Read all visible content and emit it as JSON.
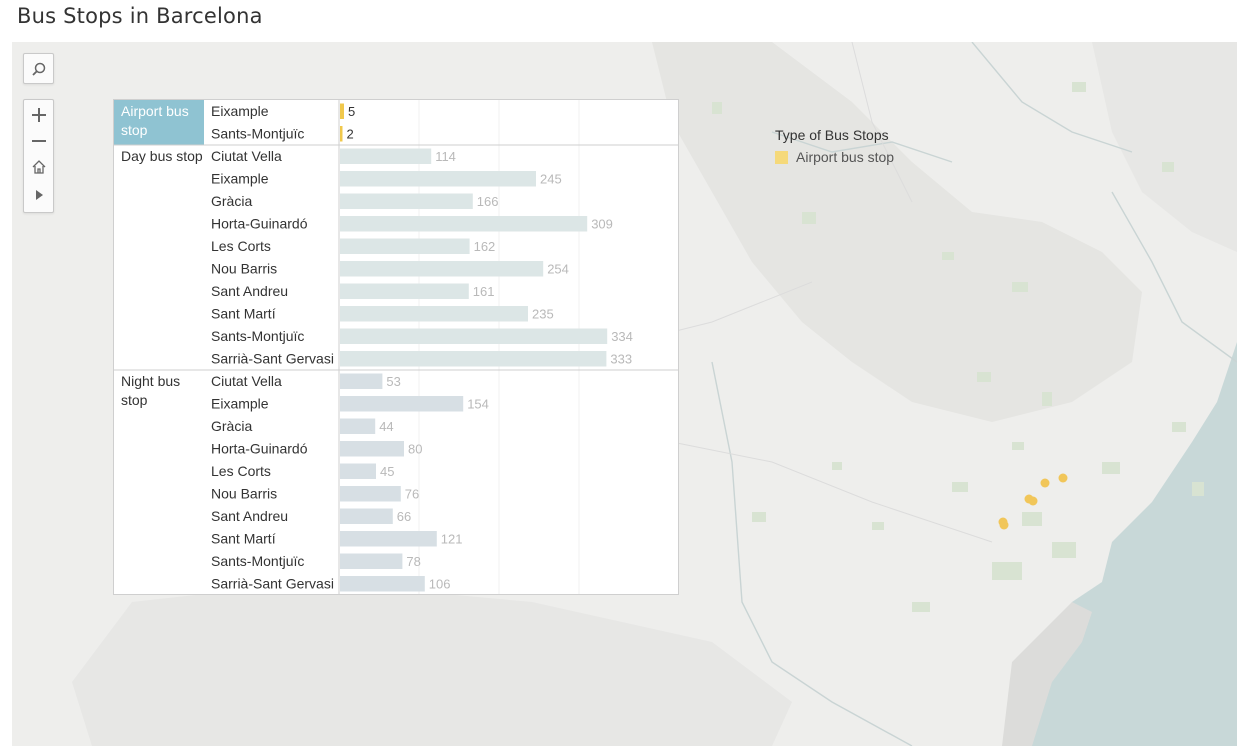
{
  "page_title": "Bus Stops in Barcelona",
  "map_controls": {
    "search": "search-icon",
    "zoom_in": "plus-icon",
    "zoom_out": "minus-icon",
    "home": "home-icon",
    "pan": "play-icon"
  },
  "legend": {
    "title": "Type of Bus Stops",
    "items": [
      {
        "label": "Airport bus stop",
        "color": "#f5d97a"
      }
    ]
  },
  "colors": {
    "map_bg": "#eeeeec",
    "airport_bar": "#f0c84c",
    "airport_header_bg": "#8fc3d2",
    "day_bar": "#dce6e6",
    "night_bar": "#d7dfe4",
    "value_label": "#b9b9b9",
    "map_point": "#f2c24a"
  },
  "chart_data": {
    "type": "bar",
    "orientation": "horizontal",
    "title": "",
    "xlabel": "",
    "ylabel": "",
    "xlim": [
      0,
      350
    ],
    "gridlines": [
      100,
      200,
      300
    ],
    "groups": [
      {
        "name": "Airport bus stop",
        "highlighted": true,
        "categories": [
          "Eixample",
          "Sants-Montjuïc"
        ],
        "values": [
          5,
          2
        ]
      },
      {
        "name": "Day bus stop",
        "highlighted": false,
        "categories": [
          "Ciutat Vella",
          "Eixample",
          "Gràcia",
          "Horta-Guinardó",
          "Les Corts",
          "Nou Barris",
          "Sant Andreu",
          "Sant Martí",
          "Sants-Montjuïc",
          "Sarrià-Sant Gervasi"
        ],
        "values": [
          114,
          245,
          166,
          309,
          162,
          254,
          161,
          235,
          334,
          333
        ]
      },
      {
        "name": "Night bus stop",
        "highlighted": false,
        "categories": [
          "Ciutat Vella",
          "Eixample",
          "Gràcia",
          "Horta-Guinardó",
          "Les Corts",
          "Nou Barris",
          "Sant Andreu",
          "Sant Martí",
          "Sants-Montjuïc",
          "Sarrià-Sant Gervasi"
        ],
        "values": [
          53,
          154,
          44,
          80,
          45,
          76,
          66,
          121,
          78,
          106
        ]
      }
    ]
  }
}
